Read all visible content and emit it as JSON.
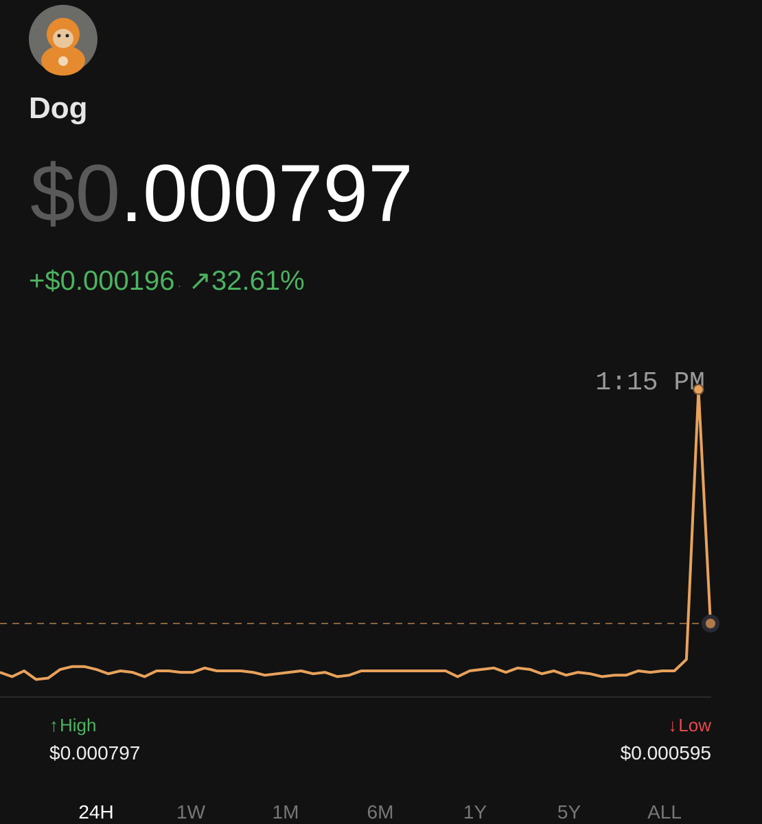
{
  "header": {
    "name": "Dog",
    "price_dim": "$0",
    "price_main": ".000797",
    "change_amount": "+$0.000196",
    "change_separator": "·",
    "change_icon": "↗",
    "change_percent": "32.61%"
  },
  "chart_data": {
    "type": "line",
    "annotation": "1:15 PM",
    "series": [
      {
        "color": "#e8a25c",
        "values": [
          0.0006,
          0.000597,
          0.000601,
          0.000595,
          0.000596,
          0.000602,
          0.000604,
          0.000604,
          0.000602,
          0.000599,
          0.000601,
          0.0006,
          0.000597,
          0.000601,
          0.000601,
          0.0006,
          0.0006,
          0.000603,
          0.000601,
          0.000601,
          0.000601,
          0.0006,
          0.000598,
          0.000599,
          0.0006,
          0.000601,
          0.000599,
          0.0006,
          0.000597,
          0.000598,
          0.000601,
          0.000601,
          0.000601,
          0.000601,
          0.000601,
          0.000601,
          0.000601,
          0.000601,
          0.000597,
          0.000601,
          0.000602,
          0.000603,
          0.0006,
          0.000603,
          0.000602,
          0.000599,
          0.000601,
          0.000598,
          0.0006,
          0.000599,
          0.000597,
          0.000598,
          0.000598,
          0.000601,
          0.0006,
          0.000601,
          0.000601,
          0.000609,
          0.000797,
          0.000634
        ]
      }
    ],
    "ylim": [
      0.00059,
      0.00081
    ]
  },
  "stats": {
    "high_icon": "↑",
    "high_label": "High",
    "high_value": "$0.000797",
    "low_icon": "↓",
    "low_label": "Low",
    "low_value": "$0.000595"
  },
  "tabs": [
    "24H",
    "1W",
    "1M",
    "6M",
    "1Y",
    "5Y",
    "ALL"
  ]
}
